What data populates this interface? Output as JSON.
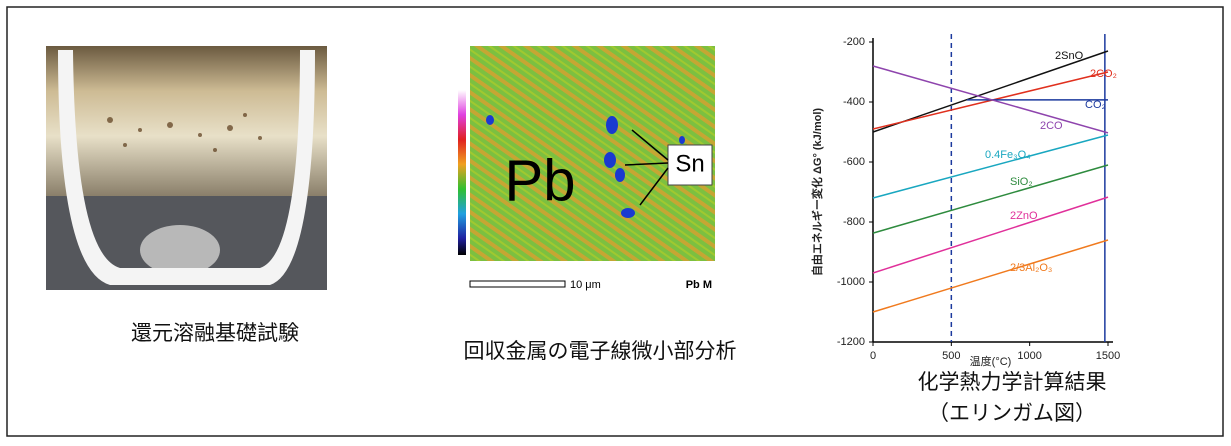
{
  "captions": [
    "還元溶融基礎試験",
    "回収金属の電子線微小部分析",
    "化学熱力学計算結果",
    "（エリンガム図）"
  ],
  "eds_map": {
    "element_label": "Pb",
    "marker_label": "Sn",
    "scale_label": "10 μm",
    "map_label": "Pb M"
  },
  "chart_data": {
    "type": "line",
    "x_label": "温度(°C)",
    "y_label": "自由エネルギー変化 ΔG° (kJ/mol)",
    "xlim": [
      0,
      1500
    ],
    "xticks": [
      0,
      500,
      1000,
      1500
    ],
    "ylim": [
      -1200,
      -200
    ],
    "yticks": [
      -200,
      -400,
      -600,
      -800,
      -1000,
      -1200
    ],
    "vlines": [
      500,
      1480
    ],
    "vline_dashed": [
      true,
      false
    ],
    "vline_color": "#1c3a9e",
    "series": [
      {
        "name": "2SnO",
        "color": "#111111",
        "x": [
          0,
          1500
        ],
        "values": [
          -500,
          -230
        ]
      },
      {
        "name": "2CO₂",
        "color": "#e0301e",
        "x": [
          0,
          1500
        ],
        "values": [
          -490,
          -300
        ]
      },
      {
        "name": "CO₂",
        "color": "#1c3a9e",
        "x": [
          600,
          1500
        ],
        "values": [
          -393,
          -393
        ]
      },
      {
        "name": "2CO",
        "color": "#8e44ad",
        "x": [
          0,
          1500
        ],
        "values": [
          -280,
          -503
        ]
      },
      {
        "name": "0.4Fe₃O₄",
        "color": "#19a7c0",
        "x": [
          0,
          1500
        ],
        "values": [
          -720,
          -510
        ]
      },
      {
        "name": "SiO₂",
        "color": "#2e8b3e",
        "x": [
          0,
          1500
        ],
        "values": [
          -837,
          -610
        ]
      },
      {
        "name": "2ZnO",
        "color": "#e0309a",
        "x": [
          0,
          1500
        ],
        "values": [
          -970,
          -717
        ]
      },
      {
        "name": "2/3Al₂O₃",
        "color": "#f07a1e",
        "x": [
          0,
          1500
        ],
        "values": [
          -1100,
          -860
        ]
      }
    ]
  }
}
